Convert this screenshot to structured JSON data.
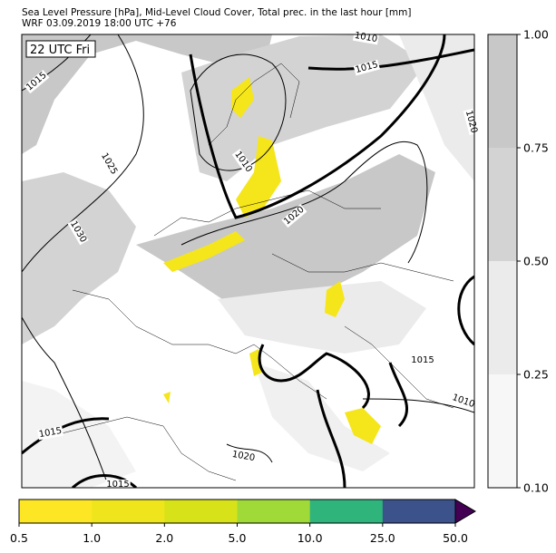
{
  "header": {
    "title": "Sea Level Pressure [hPa], Mid-Level Cloud Cover, Total prec. in the last hour [mm]",
    "subtitle": "WRF 03.09.2019 18:00 UTC +76"
  },
  "time_label": "22 UTC Fri",
  "contour_labels": [
    1010,
    1015,
    1015,
    1020,
    1010,
    1025,
    1020,
    1030,
    1015,
    1010,
    1015,
    1020,
    1015
  ],
  "cloud_colorbar": {
    "ticks": [
      {
        "value": 0.1,
        "label": "0.10"
      },
      {
        "value": 0.25,
        "label": "0.25"
      },
      {
        "value": 0.5,
        "label": "0.50"
      },
      {
        "value": 0.75,
        "label": "0.75"
      },
      {
        "value": 1,
        "label": "1.00"
      }
    ],
    "colors": [
      "#f7f7f7",
      "#ebebeb",
      "#d3d3d3",
      "#c8c8c8"
    ]
  },
  "precip_colorbar": {
    "ticks": [
      0.5,
      {
        "value": 1,
        "label": "1.0"
      },
      {
        "value": 2,
        "label": "2.0"
      },
      {
        "value": 5,
        "label": "5.0"
      },
      {
        "value": 10,
        "label": "10.0"
      },
      {
        "value": 25,
        "label": "25.0"
      },
      {
        "value": 50,
        "label": "50.0"
      }
    ],
    "colors": [
      "#fde725",
      "#efe51c",
      "#d8e219",
      "#a0da39",
      "#2fb47c",
      "#3b528b"
    ],
    "extend_color": "#440154"
  }
}
